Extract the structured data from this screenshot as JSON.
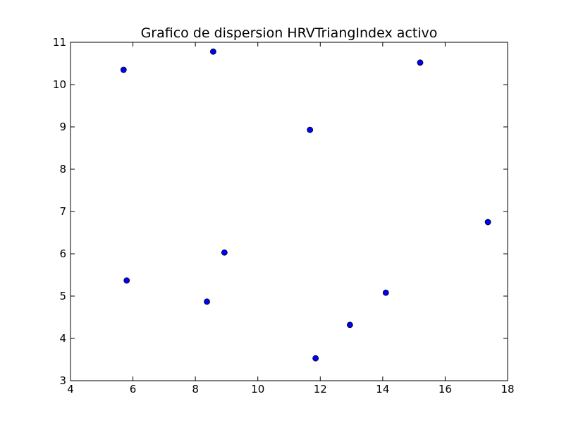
{
  "chart_data": {
    "type": "scatter",
    "title": "Grafico de dispersion HRVTriangIndex activo",
    "xlabel": "",
    "ylabel": "",
    "xlim": [
      4,
      18
    ],
    "ylim": [
      3,
      11
    ],
    "xticks": [
      4,
      6,
      8,
      10,
      12,
      14,
      16,
      18
    ],
    "yticks": [
      3,
      4,
      5,
      6,
      7,
      8,
      9,
      10,
      11
    ],
    "grid": false,
    "series": [
      {
        "name": "HRVTriangIndex",
        "marker": "circle",
        "color": "#0000ff",
        "points": [
          {
            "x": 5.7,
            "y": 10.35
          },
          {
            "x": 8.57,
            "y": 10.78
          },
          {
            "x": 15.2,
            "y": 10.52
          },
          {
            "x": 11.67,
            "y": 8.93
          },
          {
            "x": 17.37,
            "y": 6.75
          },
          {
            "x": 8.93,
            "y": 6.03
          },
          {
            "x": 5.8,
            "y": 5.37
          },
          {
            "x": 14.1,
            "y": 5.08
          },
          {
            "x": 8.37,
            "y": 4.87
          },
          {
            "x": 12.95,
            "y": 4.32
          },
          {
            "x": 11.85,
            "y": 3.53
          }
        ]
      }
    ]
  }
}
